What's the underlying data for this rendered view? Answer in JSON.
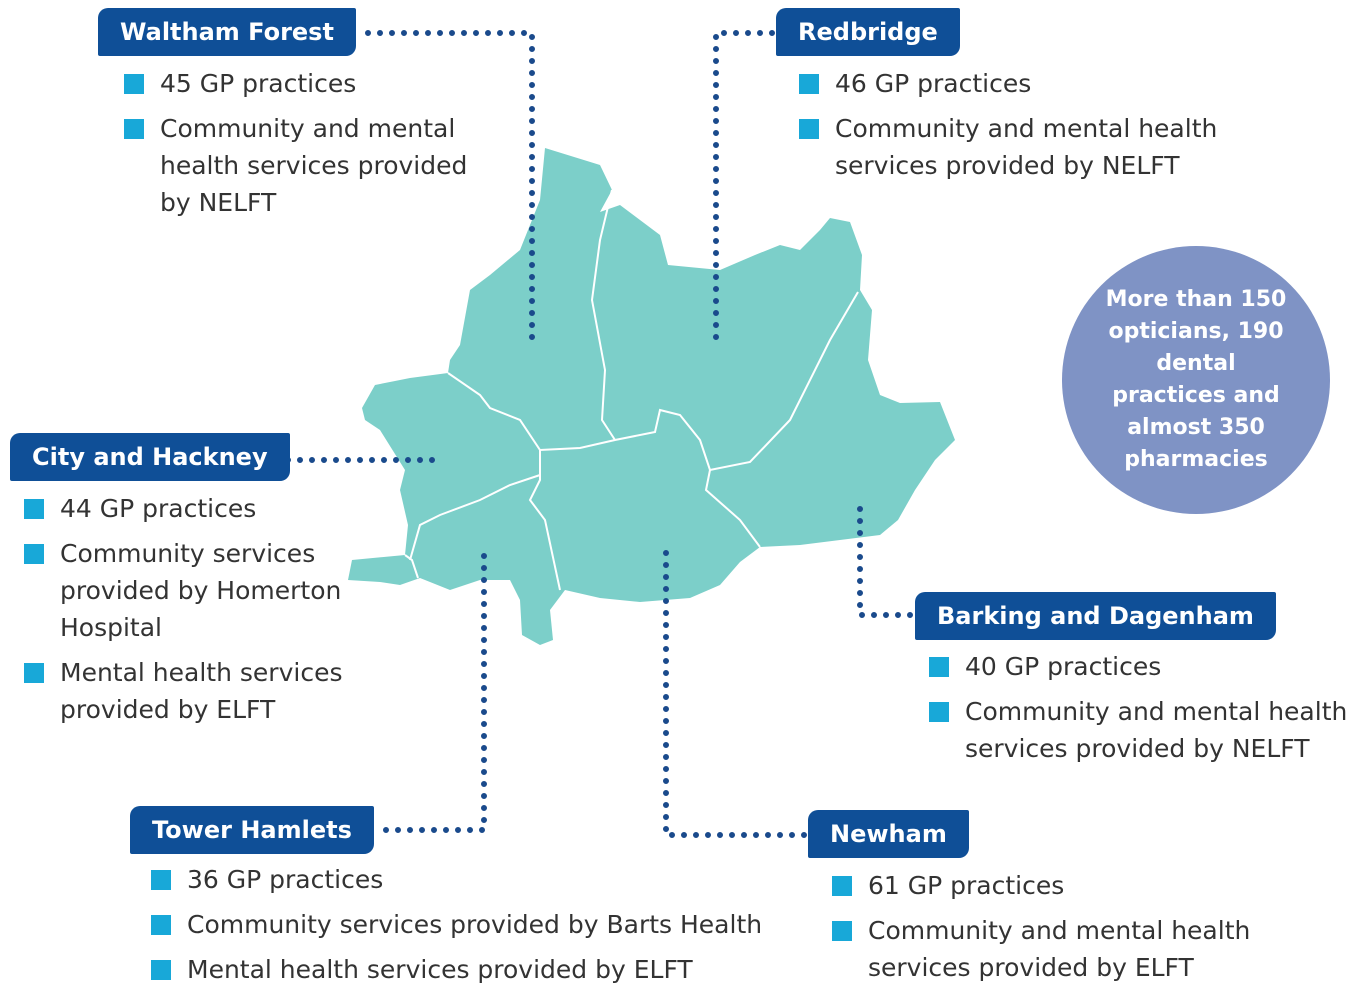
{
  "boroughs": [
    {
      "name": "Waltham Forest",
      "items": [
        "45 GP practices",
        "Community and mental health services provided by NELFT"
      ]
    },
    {
      "name": "Redbridge",
      "items": [
        "46 GP practices",
        "Community and mental health services provided by NELFT"
      ]
    },
    {
      "name": "City and Hackney",
      "items": [
        "44 GP practices",
        "Community services provided by Homerton Hospital",
        "Mental health services provided by ELFT"
      ]
    },
    {
      "name": "Barking and Dagenham",
      "items": [
        "40 GP practices",
        "Community and mental health services provided by NELFT"
      ]
    },
    {
      "name": "Tower Hamlets",
      "items": [
        "36 GP practices",
        "Community services provided by Barts Health",
        "Mental health services provided by ELFT"
      ]
    },
    {
      "name": "Newham",
      "items": [
        "61 GP practices",
        "Community and mental health services provided by ELFT"
      ]
    }
  ],
  "callout": "More than 150 opticians, 190 dental practices and almost 350 pharmacies"
}
